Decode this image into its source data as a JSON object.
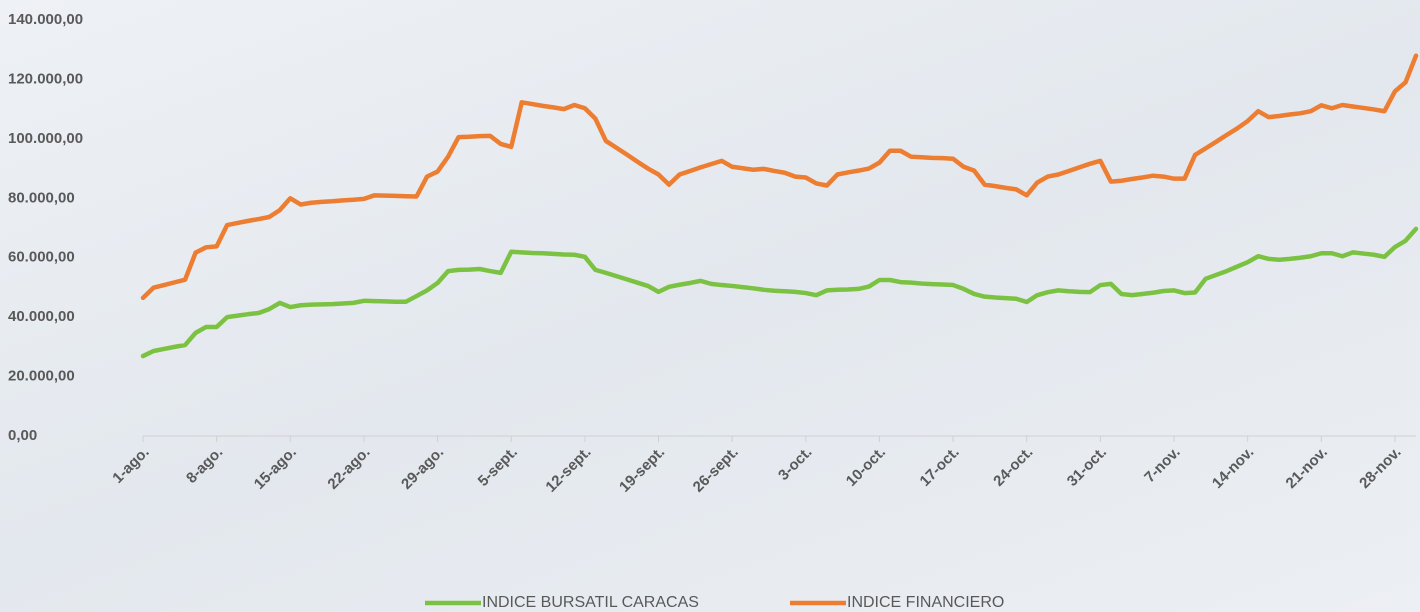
{
  "chart_data": {
    "type": "line",
    "categories": [
      "1-ago.",
      null,
      null,
      null,
      null,
      null,
      null,
      "8-ago.",
      null,
      null,
      null,
      null,
      null,
      null,
      "15-ago.",
      null,
      null,
      null,
      null,
      null,
      null,
      "22-ago.",
      null,
      null,
      null,
      null,
      null,
      null,
      "29-ago.",
      null,
      null,
      null,
      null,
      null,
      null,
      "5-sept.",
      null,
      null,
      null,
      null,
      null,
      null,
      "12-sept.",
      null,
      null,
      null,
      null,
      null,
      null,
      "19-sept.",
      null,
      null,
      null,
      null,
      null,
      null,
      "26-sept.",
      null,
      null,
      null,
      null,
      null,
      null,
      "3-oct.",
      null,
      null,
      null,
      null,
      null,
      null,
      "10-oct.",
      null,
      null,
      null,
      null,
      null,
      null,
      "17-oct.",
      null,
      null,
      null,
      null,
      null,
      null,
      "24-oct.",
      null,
      null,
      null,
      null,
      null,
      null,
      "31-oct.",
      null,
      null,
      null,
      null,
      null,
      null,
      "7-nov.",
      null,
      null,
      null,
      null,
      null,
      null,
      "14-nov.",
      null,
      null,
      null,
      null,
      null,
      null,
      "21-nov.",
      null,
      null,
      null,
      null,
      null,
      null,
      "28-nov.",
      null,
      null
    ],
    "series": [
      {
        "name": "INDICE BURSATIL CARACAS",
        "color": "#7cc242",
        "values": [
          26900,
          28600,
          29300,
          30000,
          30600,
          34700,
          36700,
          36700,
          40000,
          40500,
          41000,
          41400,
          42700,
          44800,
          43400,
          44000,
          44200,
          44300,
          44400,
          44600,
          44800,
          45500,
          45400,
          45300,
          45200,
          45200,
          47100,
          49000,
          51500,
          55500,
          55900,
          56000,
          56200,
          55500,
          54900,
          62000,
          61800,
          61600,
          61500,
          61300,
          61100,
          61000,
          60300,
          55900,
          54900,
          53800,
          52700,
          51600,
          50500,
          48500,
          50200,
          50900,
          51500,
          52200,
          51200,
          50800,
          50500,
          50100,
          49700,
          49200,
          48900,
          48700,
          48500,
          48100,
          47400,
          49000,
          49200,
          49300,
          49500,
          50300,
          52500,
          52500,
          51800,
          51600,
          51300,
          51100,
          51000,
          50800,
          49500,
          47800,
          46900,
          46600,
          46400,
          46200,
          45100,
          47400,
          48400,
          49000,
          48700,
          48500,
          48400,
          50800,
          51200,
          47800,
          47400,
          47800,
          48200,
          48800,
          49000,
          48100,
          48300,
          52900,
          54200,
          55500,
          57000,
          58500,
          60500,
          59600,
          59300,
          59600,
          60000,
          60500,
          61500,
          61500,
          60500,
          61800,
          61400,
          61000,
          60300,
          63600,
          65700,
          69700
        ]
      },
      {
        "name": "INDICE FINANCIERO",
        "color": "#ed7d31",
        "values": [
          46500,
          49900,
          50800,
          51700,
          52600,
          61700,
          63500,
          63800,
          71000,
          71700,
          72400,
          73000,
          73700,
          76000,
          80000,
          77900,
          78500,
          78800,
          79000,
          79300,
          79500,
          79800,
          81000,
          80900,
          80800,
          80700,
          80600,
          87300,
          89000,
          94000,
          100600,
          100700,
          100900,
          101000,
          98300,
          97300,
          112300,
          111700,
          111100,
          110600,
          110000,
          111400,
          110300,
          106800,
          99300,
          97000,
          94700,
          92300,
          90000,
          88000,
          84600,
          88000,
          89200,
          90400,
          91500,
          92600,
          90600,
          90100,
          89600,
          89900,
          89200,
          88600,
          87300,
          87000,
          85000,
          84300,
          88000,
          88700,
          89300,
          90000,
          92000,
          96000,
          96000,
          94000,
          93800,
          93600,
          93500,
          93300,
          90600,
          89300,
          84600,
          84100,
          83500,
          83000,
          81000,
          85300,
          87300,
          88000,
          89200,
          90400,
          91600,
          92600,
          85600,
          85900,
          86500,
          87000,
          87600,
          87300,
          86600,
          86600,
          94600,
          96800,
          99000,
          101300,
          103500,
          106000,
          109300,
          107300,
          107700,
          108200,
          108600,
          109300,
          111300,
          110300,
          111400,
          110900,
          110400,
          109900,
          109300,
          116000,
          119000,
          128000
        ]
      }
    ],
    "ylim": [
      0,
      140000
    ],
    "yticks": [
      {
        "value": 0,
        "label": "0,00"
      },
      {
        "value": 20000,
        "label": "20.000,00"
      },
      {
        "value": 40000,
        "label": "40.000,00"
      },
      {
        "value": 60000,
        "label": "60.000,00"
      },
      {
        "value": 80000,
        "label": "80.000,00"
      },
      {
        "value": 100000,
        "label": "100.000,00"
      },
      {
        "value": 120000,
        "label": "120.000,00"
      },
      {
        "value": 140000,
        "label": "140.000,00"
      }
    ],
    "legend": "bottom"
  }
}
